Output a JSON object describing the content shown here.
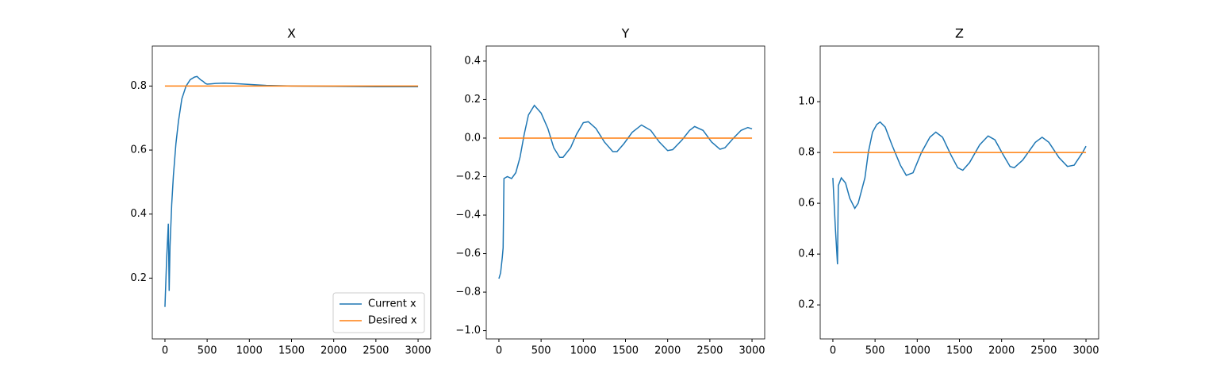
{
  "chart_data": [
    {
      "type": "line",
      "title": "X",
      "x": [
        0,
        20,
        40,
        50,
        60,
        80,
        100,
        130,
        160,
        200,
        250,
        300,
        350,
        380,
        400,
        420,
        450,
        480,
        500,
        550,
        600,
        700,
        800,
        1000,
        1200,
        1500,
        2000,
        2500,
        3000
      ],
      "series": [
        {
          "name": "Current x",
          "color": "#1f77b4",
          "values": [
            0.11,
            0.26,
            0.37,
            0.16,
            0.3,
            0.43,
            0.52,
            0.62,
            0.69,
            0.76,
            0.8,
            0.82,
            0.828,
            0.83,
            0.825,
            0.82,
            0.815,
            0.808,
            0.806,
            0.807,
            0.808,
            0.809,
            0.808,
            0.805,
            0.802,
            0.8,
            0.799,
            0.798,
            0.798
          ]
        },
        {
          "name": "Desired x",
          "color": "#ff7f0e",
          "values": [
            0.8,
            0.8,
            0.8,
            0.8,
            0.8,
            0.8,
            0.8,
            0.8,
            0.8,
            0.8,
            0.8,
            0.8,
            0.8,
            0.8,
            0.8,
            0.8,
            0.8,
            0.8,
            0.8,
            0.8,
            0.8,
            0.8,
            0.8,
            0.8,
            0.8,
            0.8,
            0.8,
            0.8,
            0.8
          ]
        }
      ],
      "xlim": [
        -150,
        3150
      ],
      "xticks": [
        0,
        500,
        1000,
        1500,
        2000,
        2500,
        3000
      ],
      "ylim": [
        0.01,
        0.925
      ],
      "yticks": [
        0.2,
        0.4,
        0.6,
        0.8
      ],
      "legend": "lower right"
    },
    {
      "type": "line",
      "title": "Y",
      "x": [
        0,
        20,
        40,
        50,
        60,
        100,
        150,
        200,
        250,
        300,
        350,
        420,
        500,
        580,
        650,
        720,
        760,
        850,
        920,
        1000,
        1060,
        1150,
        1250,
        1350,
        1400,
        1480,
        1580,
        1690,
        1800,
        1900,
        2000,
        2060,
        2170,
        2260,
        2320,
        2420,
        2520,
        2620,
        2680,
        2780,
        2870,
        2950,
        3000
      ],
      "series": [
        {
          "color": "#1f77b4",
          "values": [
            -0.73,
            -0.7,
            -0.62,
            -0.57,
            -0.21,
            -0.2,
            -0.21,
            -0.18,
            -0.1,
            0.02,
            0.12,
            0.17,
            0.13,
            0.05,
            -0.05,
            -0.1,
            -0.1,
            -0.05,
            0.02,
            0.08,
            0.085,
            0.05,
            -0.02,
            -0.07,
            -0.07,
            -0.03,
            0.03,
            0.068,
            0.04,
            -0.02,
            -0.065,
            -0.06,
            -0.01,
            0.04,
            0.06,
            0.04,
            -0.02,
            -0.058,
            -0.05,
            0.0,
            0.04,
            0.055,
            0.048
          ]
        },
        {
          "color": "#ff7f0e",
          "values": [
            0,
            0,
            0,
            0,
            0,
            0,
            0,
            0,
            0,
            0,
            0,
            0,
            0,
            0,
            0,
            0,
            0,
            0,
            0,
            0,
            0,
            0,
            0,
            0,
            0,
            0,
            0,
            0,
            0,
            0,
            0,
            0,
            0,
            0,
            0,
            0,
            0,
            0,
            0,
            0,
            0,
            0,
            0
          ]
        }
      ],
      "xlim": [
        -150,
        3150
      ],
      "xticks": [
        0,
        500,
        1000,
        1500,
        2000,
        2500,
        3000
      ],
      "ylim": [
        -1.043,
        0.478
      ],
      "yticks": [
        {
          "value": -1,
          "label": "−1.0"
        },
        {
          "value": -0.8,
          "label": "−0.8"
        },
        {
          "value": -0.6,
          "label": "−0.6"
        },
        {
          "value": -0.4,
          "label": "−0.4"
        },
        {
          "value": -0.2,
          "label": "−0.2"
        },
        {
          "value": 0,
          "label": "0.0"
        },
        0.2,
        0.4
      ]
    },
    {
      "type": "line",
      "title": "Z",
      "x": [
        0,
        30,
        55,
        65,
        100,
        150,
        200,
        260,
        300,
        380,
        420,
        470,
        520,
        560,
        620,
        700,
        800,
        870,
        950,
        1050,
        1150,
        1220,
        1300,
        1400,
        1480,
        1540,
        1620,
        1740,
        1840,
        1920,
        2020,
        2100,
        2150,
        2250,
        2400,
        2480,
        2560,
        2680,
        2780,
        2860,
        2960,
        3000
      ],
      "series": [
        {
          "color": "#1f77b4",
          "values": [
            0.7,
            0.5,
            0.36,
            0.67,
            0.7,
            0.68,
            0.62,
            0.58,
            0.6,
            0.7,
            0.8,
            0.88,
            0.91,
            0.92,
            0.9,
            0.83,
            0.75,
            0.71,
            0.72,
            0.8,
            0.86,
            0.88,
            0.86,
            0.79,
            0.74,
            0.73,
            0.76,
            0.83,
            0.865,
            0.85,
            0.79,
            0.745,
            0.74,
            0.77,
            0.84,
            0.86,
            0.84,
            0.78,
            0.745,
            0.75,
            0.8,
            0.825
          ]
        },
        {
          "color": "#ff7f0e",
          "values": [
            0.8,
            0.8,
            0.8,
            0.8,
            0.8,
            0.8,
            0.8,
            0.8,
            0.8,
            0.8,
            0.8,
            0.8,
            0.8,
            0.8,
            0.8,
            0.8,
            0.8,
            0.8,
            0.8,
            0.8,
            0.8,
            0.8,
            0.8,
            0.8,
            0.8,
            0.8,
            0.8,
            0.8,
            0.8,
            0.8,
            0.8,
            0.8,
            0.8,
            0.8,
            0.8,
            0.8,
            0.8,
            0.8,
            0.8,
            0.8,
            0.8,
            0.8
          ]
        }
      ],
      "xlim": [
        -150,
        3150
      ],
      "xticks": [
        0,
        500,
        1000,
        1500,
        2000,
        2500,
        3000
      ],
      "ylim": [
        0.066,
        1.219
      ],
      "yticks": [
        0.2,
        0.4,
        0.6,
        0.8,
        {
          "value": 1,
          "label": "1.0"
        }
      ]
    }
  ]
}
